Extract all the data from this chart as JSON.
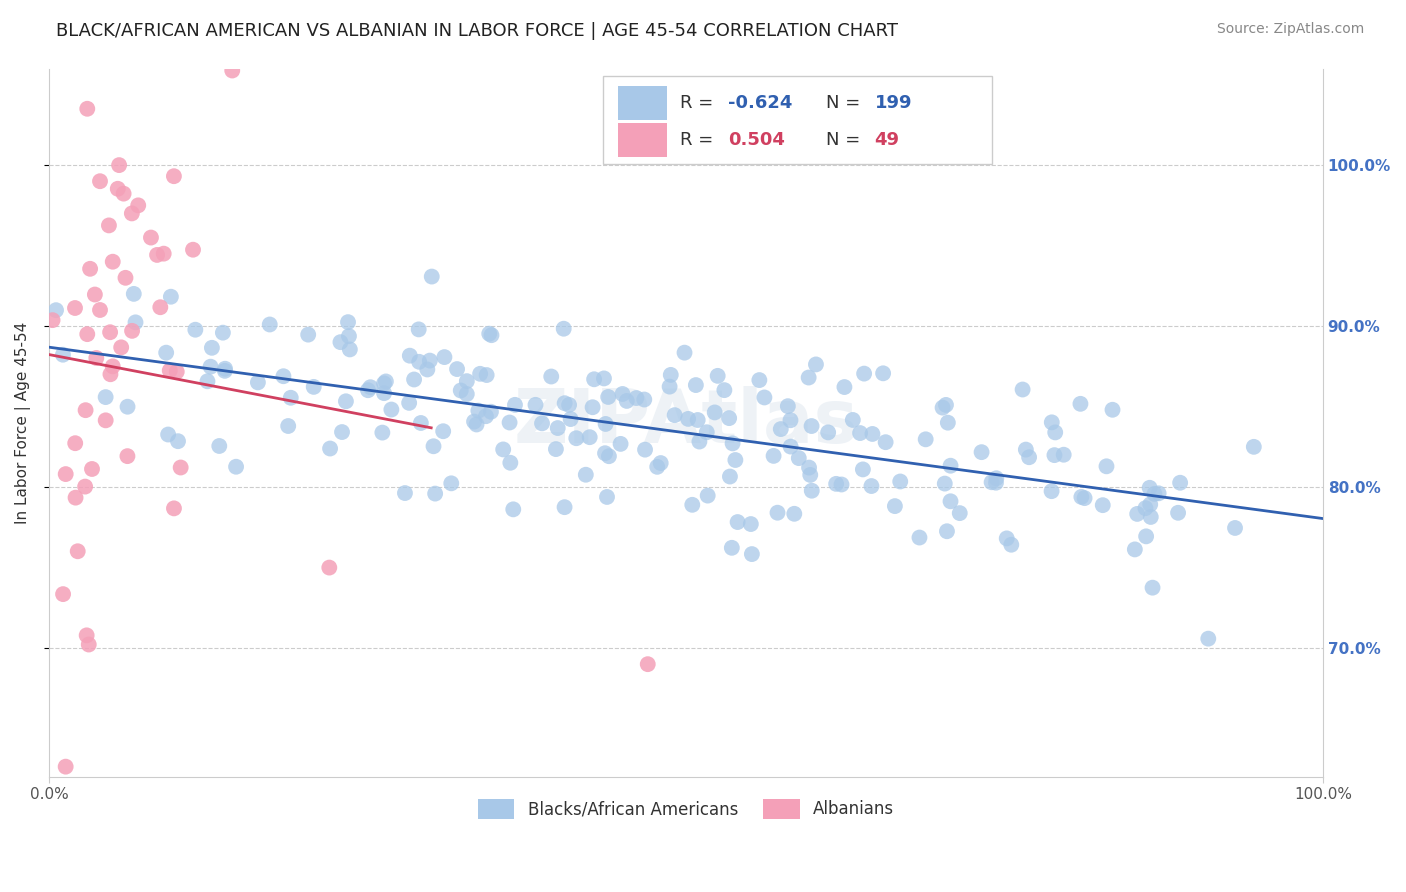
{
  "title": "BLACK/AFRICAN AMERICAN VS ALBANIAN IN LABOR FORCE | AGE 45-54 CORRELATION CHART",
  "source": "Source: ZipAtlas.com",
  "ylabel": "In Labor Force | Age 45-54",
  "r_blue": -0.624,
  "n_blue": 199,
  "r_pink": 0.504,
  "n_pink": 49,
  "blue_color": "#a8c8e8",
  "pink_color": "#f4a0b8",
  "blue_line_color": "#3060b0",
  "pink_line_color": "#d04060",
  "legend_blue_fill": "#a8c8e8",
  "legend_pink_fill": "#f4a0b8",
  "watermark": "ZIPAtlas",
  "xmin": 0.0,
  "xmax": 1.0,
  "ymin": 0.62,
  "ymax": 1.06,
  "xtick_labels": [
    "0.0%",
    "100.0%"
  ],
  "ytick_labels": [
    "70.0%",
    "80.0%",
    "90.0%",
    "100.0%"
  ],
  "ytick_values": [
    0.7,
    0.8,
    0.9,
    1.0
  ],
  "grid_color": "#cccccc",
  "background_color": "#ffffff",
  "title_fontsize": 13,
  "source_fontsize": 10,
  "axis_label_fontsize": 11,
  "tick_fontsize": 11
}
